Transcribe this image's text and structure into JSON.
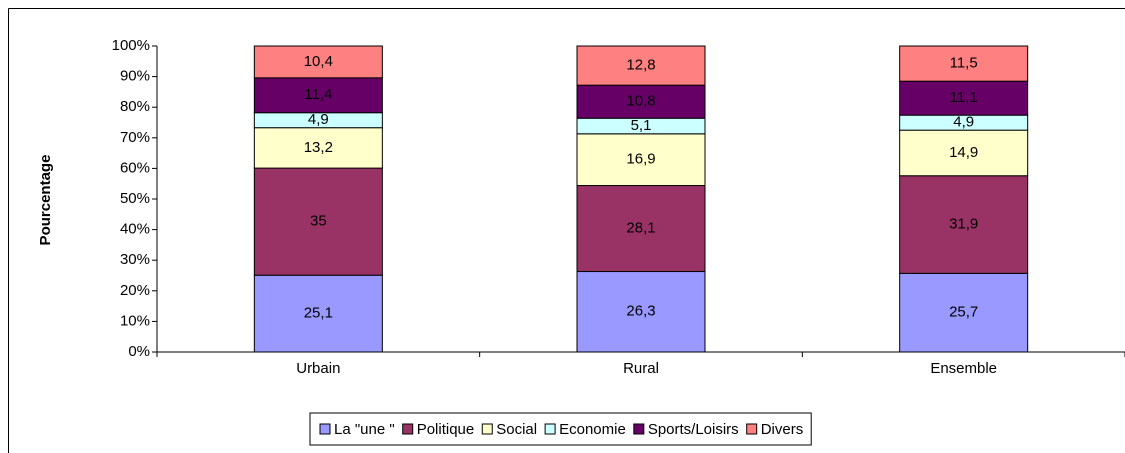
{
  "chart_data": {
    "type": "stacked_bar",
    "ylabel": "Pourcentage",
    "categories": [
      "Urbain",
      "Rural",
      "Ensemble"
    ],
    "series": [
      {
        "name": "La \"une \"",
        "color": "#9999ff",
        "values": [
          25.1,
          26.3,
          25.7
        ],
        "value_labels": [
          "25,1",
          "26,3",
          "25,7"
        ]
      },
      {
        "name": "Politique",
        "color": "#993366",
        "values": [
          35,
          28.1,
          31.9
        ],
        "value_labels": [
          "35",
          "28,1",
          "31,9"
        ]
      },
      {
        "name": "Social",
        "color": "#ffffcc",
        "values": [
          13.2,
          16.9,
          14.9
        ],
        "value_labels": [
          "13,2",
          "16,9",
          "14,9"
        ]
      },
      {
        "name": "Economie",
        "color": "#ccffff",
        "values": [
          4.9,
          5.1,
          4.9
        ],
        "value_labels": [
          "4,9",
          "5,1",
          "4,9"
        ]
      },
      {
        "name": "Sports/Loisirs",
        "color": "#660066",
        "values": [
          11.4,
          10.8,
          11.1
        ],
        "value_labels": [
          "11,4",
          "10,8",
          "11,1"
        ]
      },
      {
        "name": "Divers",
        "color": "#ff8080",
        "values": [
          10.4,
          12.8,
          11.5
        ],
        "value_labels": [
          "10,4",
          "12,8",
          "11,5"
        ]
      }
    ],
    "ylim": [
      0,
      100
    ],
    "yticks": [
      {
        "value": 0,
        "label": "0%"
      },
      {
        "value": 10,
        "label": "10%"
      },
      {
        "value": 20,
        "label": "20%"
      },
      {
        "value": 30,
        "label": "30%"
      },
      {
        "value": 40,
        "label": "40%"
      },
      {
        "value": 50,
        "label": "50%"
      },
      {
        "value": 60,
        "label": "60%"
      },
      {
        "value": 70,
        "label": "70%"
      },
      {
        "value": 80,
        "label": "80%"
      },
      {
        "value": 90,
        "label": "90%"
      },
      {
        "value": 100,
        "label": "100%"
      }
    ],
    "legend": "bottom"
  }
}
